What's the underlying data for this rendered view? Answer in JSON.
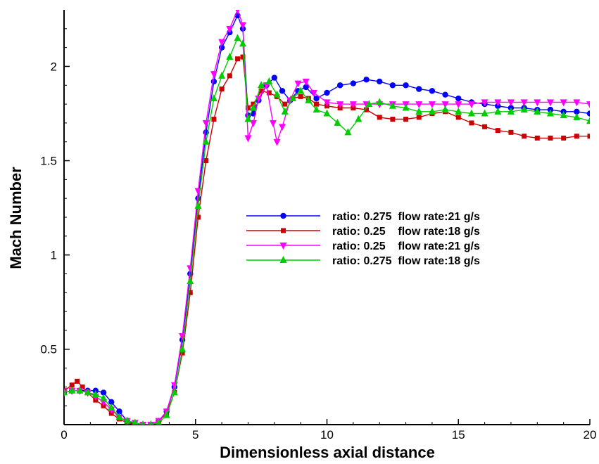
{
  "chart_data": {
    "type": "line",
    "xlabel": "Dimensionless axial distance",
    "ylabel": "Mach Number",
    "xlim": [
      0,
      20
    ],
    "ylim": [
      0.1,
      2.3
    ],
    "x_ticks": [
      0,
      5,
      10,
      15,
      20
    ],
    "y_ticks": [
      0.5,
      1,
      1.5,
      2
    ],
    "x_tick_labels": [
      "0",
      "5",
      "10",
      "15",
      "20"
    ],
    "y_tick_labels": [
      "0.5",
      "1",
      "1.5",
      "2"
    ],
    "grid": false,
    "legend_position": "center-right",
    "series": [
      {
        "name": "ratio: 0.275  flow rate:21 g/s",
        "color": "#0000ff",
        "marker": "circle",
        "points": [
          [
            0,
            0.27
          ],
          [
            0.3,
            0.28
          ],
          [
            0.6,
            0.28
          ],
          [
            0.9,
            0.28
          ],
          [
            1.2,
            0.28
          ],
          [
            1.5,
            0.27
          ],
          [
            1.8,
            0.22
          ],
          [
            2.1,
            0.17
          ],
          [
            2.4,
            0.12
          ],
          [
            2.7,
            0.1
          ],
          [
            3.0,
            0.09
          ],
          [
            3.3,
            0.1
          ],
          [
            3.6,
            0.12
          ],
          [
            3.9,
            0.17
          ],
          [
            4.2,
            0.3
          ],
          [
            4.5,
            0.55
          ],
          [
            4.8,
            0.9
          ],
          [
            5.1,
            1.3
          ],
          [
            5.4,
            1.65
          ],
          [
            5.7,
            1.92
          ],
          [
            6.0,
            2.1
          ],
          [
            6.3,
            2.18
          ],
          [
            6.6,
            2.27
          ],
          [
            6.8,
            2.2
          ],
          [
            7.0,
            1.74
          ],
          [
            7.2,
            1.75
          ],
          [
            7.4,
            1.82
          ],
          [
            7.7,
            1.9
          ],
          [
            8.0,
            1.94
          ],
          [
            8.3,
            1.87
          ],
          [
            8.6,
            1.82
          ],
          [
            8.9,
            1.87
          ],
          [
            9.2,
            1.89
          ],
          [
            9.6,
            1.83
          ],
          [
            10.0,
            1.86
          ],
          [
            10.5,
            1.9
          ],
          [
            11.0,
            1.91
          ],
          [
            11.5,
            1.93
          ],
          [
            12.0,
            1.92
          ],
          [
            12.5,
            1.9
          ],
          [
            13.0,
            1.9
          ],
          [
            13.5,
            1.88
          ],
          [
            14.0,
            1.87
          ],
          [
            14.5,
            1.85
          ],
          [
            15.0,
            1.83
          ],
          [
            15.5,
            1.81
          ],
          [
            16.0,
            1.8
          ],
          [
            16.5,
            1.79
          ],
          [
            17.0,
            1.78
          ],
          [
            17.5,
            1.78
          ],
          [
            18.0,
            1.77
          ],
          [
            18.5,
            1.77
          ],
          [
            19.0,
            1.76
          ],
          [
            19.5,
            1.76
          ],
          [
            20.0,
            1.75
          ]
        ]
      },
      {
        "name": "ratio: 0.25    flow rate:18 g/s",
        "color": "#cc0000",
        "marker": "square",
        "points": [
          [
            0,
            0.28
          ],
          [
            0.3,
            0.31
          ],
          [
            0.5,
            0.33
          ],
          [
            0.7,
            0.3
          ],
          [
            0.9,
            0.27
          ],
          [
            1.2,
            0.23
          ],
          [
            1.5,
            0.2
          ],
          [
            1.8,
            0.16
          ],
          [
            2.1,
            0.13
          ],
          [
            2.4,
            0.11
          ],
          [
            2.7,
            0.1
          ],
          [
            3.0,
            0.1
          ],
          [
            3.3,
            0.1
          ],
          [
            3.6,
            0.12
          ],
          [
            3.9,
            0.16
          ],
          [
            4.2,
            0.27
          ],
          [
            4.5,
            0.48
          ],
          [
            4.8,
            0.8
          ],
          [
            5.1,
            1.2
          ],
          [
            5.4,
            1.5
          ],
          [
            5.7,
            1.72
          ],
          [
            6.0,
            1.88
          ],
          [
            6.3,
            1.95
          ],
          [
            6.6,
            2.04
          ],
          [
            6.8,
            2.05
          ],
          [
            7.0,
            1.78
          ],
          [
            7.2,
            1.8
          ],
          [
            7.5,
            1.87
          ],
          [
            7.8,
            1.86
          ],
          [
            8.1,
            1.84
          ],
          [
            8.4,
            1.8
          ],
          [
            8.7,
            1.83
          ],
          [
            9.0,
            1.84
          ],
          [
            9.3,
            1.83
          ],
          [
            9.6,
            1.8
          ],
          [
            10.0,
            1.79
          ],
          [
            10.5,
            1.78
          ],
          [
            11.0,
            1.78
          ],
          [
            11.5,
            1.77
          ],
          [
            12.0,
            1.73
          ],
          [
            12.5,
            1.72
          ],
          [
            13.0,
            1.72
          ],
          [
            13.5,
            1.73
          ],
          [
            14.0,
            1.75
          ],
          [
            14.5,
            1.76
          ],
          [
            15.0,
            1.73
          ],
          [
            15.5,
            1.7
          ],
          [
            16.0,
            1.68
          ],
          [
            16.5,
            1.66
          ],
          [
            17.0,
            1.65
          ],
          [
            17.5,
            1.63
          ],
          [
            18.0,
            1.62
          ],
          [
            18.5,
            1.62
          ],
          [
            19.0,
            1.62
          ],
          [
            19.5,
            1.63
          ],
          [
            20.0,
            1.63
          ]
        ]
      },
      {
        "name": "ratio: 0.25    flow rate:21 g/s",
        "color": "#ff00ff",
        "marker": "triangle-down",
        "points": [
          [
            0,
            0.27
          ],
          [
            0.3,
            0.28
          ],
          [
            0.6,
            0.28
          ],
          [
            0.9,
            0.27
          ],
          [
            1.2,
            0.25
          ],
          [
            1.5,
            0.22
          ],
          [
            1.8,
            0.18
          ],
          [
            2.1,
            0.14
          ],
          [
            2.4,
            0.12
          ],
          [
            2.7,
            0.11
          ],
          [
            3.0,
            0.1
          ],
          [
            3.3,
            0.1
          ],
          [
            3.6,
            0.12
          ],
          [
            3.9,
            0.17
          ],
          [
            4.2,
            0.31
          ],
          [
            4.5,
            0.57
          ],
          [
            4.8,
            0.93
          ],
          [
            5.1,
            1.34
          ],
          [
            5.4,
            1.7
          ],
          [
            5.7,
            1.96
          ],
          [
            6.0,
            2.13
          ],
          [
            6.3,
            2.2
          ],
          [
            6.6,
            2.3
          ],
          [
            6.8,
            2.22
          ],
          [
            7.0,
            1.62
          ],
          [
            7.2,
            1.7
          ],
          [
            7.4,
            1.83
          ],
          [
            7.7,
            1.9
          ],
          [
            7.95,
            1.7
          ],
          [
            8.1,
            1.6
          ],
          [
            8.3,
            1.68
          ],
          [
            8.6,
            1.82
          ],
          [
            8.9,
            1.91
          ],
          [
            9.2,
            1.92
          ],
          [
            9.5,
            1.86
          ],
          [
            10.0,
            1.81
          ],
          [
            10.5,
            1.8
          ],
          [
            11.0,
            1.8
          ],
          [
            11.5,
            1.8
          ],
          [
            12.0,
            1.8
          ],
          [
            12.5,
            1.8
          ],
          [
            13.0,
            1.8
          ],
          [
            13.5,
            1.8
          ],
          [
            14.0,
            1.8
          ],
          [
            14.5,
            1.8
          ],
          [
            15.0,
            1.8
          ],
          [
            15.5,
            1.8
          ],
          [
            16.0,
            1.81
          ],
          [
            16.5,
            1.81
          ],
          [
            17.0,
            1.81
          ],
          [
            17.5,
            1.81
          ],
          [
            18.0,
            1.81
          ],
          [
            18.5,
            1.81
          ],
          [
            19.0,
            1.81
          ],
          [
            19.5,
            1.81
          ],
          [
            20.0,
            1.8
          ]
        ]
      },
      {
        "name": "ratio: 0.275  flow rate:18 g/s",
        "color": "#00cc00",
        "marker": "triangle-up",
        "points": [
          [
            0,
            0.27
          ],
          [
            0.3,
            0.28
          ],
          [
            0.6,
            0.28
          ],
          [
            0.9,
            0.27
          ],
          [
            1.2,
            0.26
          ],
          [
            1.5,
            0.24
          ],
          [
            1.8,
            0.19
          ],
          [
            2.1,
            0.14
          ],
          [
            2.4,
            0.12
          ],
          [
            2.7,
            0.11
          ],
          [
            3.0,
            0.1
          ],
          [
            3.3,
            0.1
          ],
          [
            3.6,
            0.11
          ],
          [
            3.9,
            0.15
          ],
          [
            4.2,
            0.27
          ],
          [
            4.5,
            0.5
          ],
          [
            4.8,
            0.86
          ],
          [
            5.1,
            1.26
          ],
          [
            5.4,
            1.6
          ],
          [
            5.7,
            1.83
          ],
          [
            6.0,
            1.95
          ],
          [
            6.3,
            2.05
          ],
          [
            6.6,
            2.15
          ],
          [
            6.8,
            2.12
          ],
          [
            7.0,
            1.72
          ],
          [
            7.2,
            1.78
          ],
          [
            7.5,
            1.9
          ],
          [
            7.8,
            1.92
          ],
          [
            8.1,
            1.85
          ],
          [
            8.4,
            1.76
          ],
          [
            8.7,
            1.83
          ],
          [
            9.0,
            1.87
          ],
          [
            9.3,
            1.82
          ],
          [
            9.6,
            1.77
          ],
          [
            10.0,
            1.75
          ],
          [
            10.4,
            1.7
          ],
          [
            10.8,
            1.65
          ],
          [
            11.2,
            1.72
          ],
          [
            11.6,
            1.8
          ],
          [
            12.0,
            1.81
          ],
          [
            12.5,
            1.79
          ],
          [
            13.0,
            1.78
          ],
          [
            13.5,
            1.76
          ],
          [
            14.0,
            1.76
          ],
          [
            14.5,
            1.77
          ],
          [
            15.0,
            1.76
          ],
          [
            15.5,
            1.75
          ],
          [
            16.0,
            1.75
          ],
          [
            16.5,
            1.76
          ],
          [
            17.0,
            1.76
          ],
          [
            17.5,
            1.77
          ],
          [
            18.0,
            1.76
          ],
          [
            18.5,
            1.75
          ],
          [
            19.0,
            1.74
          ],
          [
            19.5,
            1.73
          ],
          [
            20.0,
            1.71
          ]
        ]
      }
    ]
  }
}
